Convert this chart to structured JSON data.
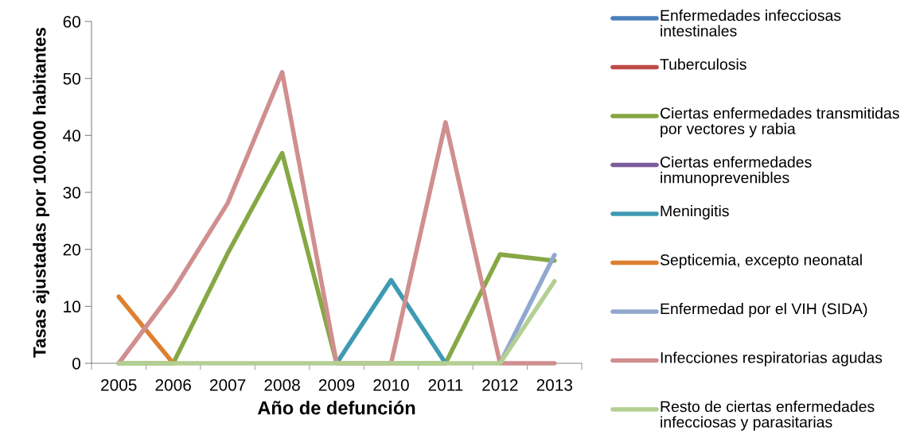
{
  "chart_data": {
    "type": "line",
    "xlabel": "Año de defunción",
    "ylabel": "Tasas ajustadas por 100.000 habitantes",
    "categories": [
      "2005",
      "2006",
      "2007",
      "2008",
      "2009",
      "2010",
      "2011",
      "2012",
      "2013"
    ],
    "ylim": [
      0,
      60
    ],
    "yticks": [
      0,
      10,
      20,
      30,
      40,
      50,
      60
    ],
    "grid": false,
    "legend": "right",
    "marker": "none",
    "line_style": "solid",
    "series": [
      {
        "name": "Enfermedades infecciosas intestinales",
        "color": "#4a7ebb",
        "values": [
          null,
          null,
          null,
          null,
          null,
          null,
          null,
          null,
          null
        ]
      },
      {
        "name": "Tuberculosis",
        "color": "#be4b48",
        "values": [
          null,
          null,
          null,
          null,
          null,
          null,
          null,
          null,
          null
        ]
      },
      {
        "name": "Ciertas enfermedades transmitidas por vectores y rabia",
        "color": "#86a844",
        "values": [
          0,
          0,
          19.3,
          36.9,
          0,
          0,
          0,
          19.1,
          18
        ]
      },
      {
        "name": "Ciertas enfermedades inmunoprevenibles",
        "color": "#7b5d9b",
        "values": [
          null,
          null,
          null,
          null,
          null,
          null,
          null,
          null,
          null
        ]
      },
      {
        "name": "Meningitis",
        "color": "#3e9ab2",
        "values": [
          null,
          null,
          null,
          null,
          0,
          14.6,
          0,
          null,
          null
        ]
      },
      {
        "name": "Septicemia, excepto neonatal",
        "color": "#dd8030",
        "values": [
          11.7,
          0,
          null,
          null,
          null,
          null,
          null,
          null,
          null
        ]
      },
      {
        "name": "Enfermedad por el VIH (SIDA)",
        "color": "#91a8cf",
        "values": [
          null,
          null,
          null,
          null,
          null,
          null,
          null,
          0,
          19
        ]
      },
      {
        "name": "Infecciones respiratorias agudas",
        "color": "#d08f8f",
        "values": [
          0,
          12.8,
          28.1,
          51.1,
          0,
          0,
          42.3,
          0,
          0
        ]
      },
      {
        "name": "Resto de ciertas enfermedades infecciosas y parasitarias",
        "color": "#b4cf93",
        "values": [
          0,
          0,
          0,
          0,
          0,
          0,
          0,
          0,
          14.4
        ]
      }
    ]
  }
}
